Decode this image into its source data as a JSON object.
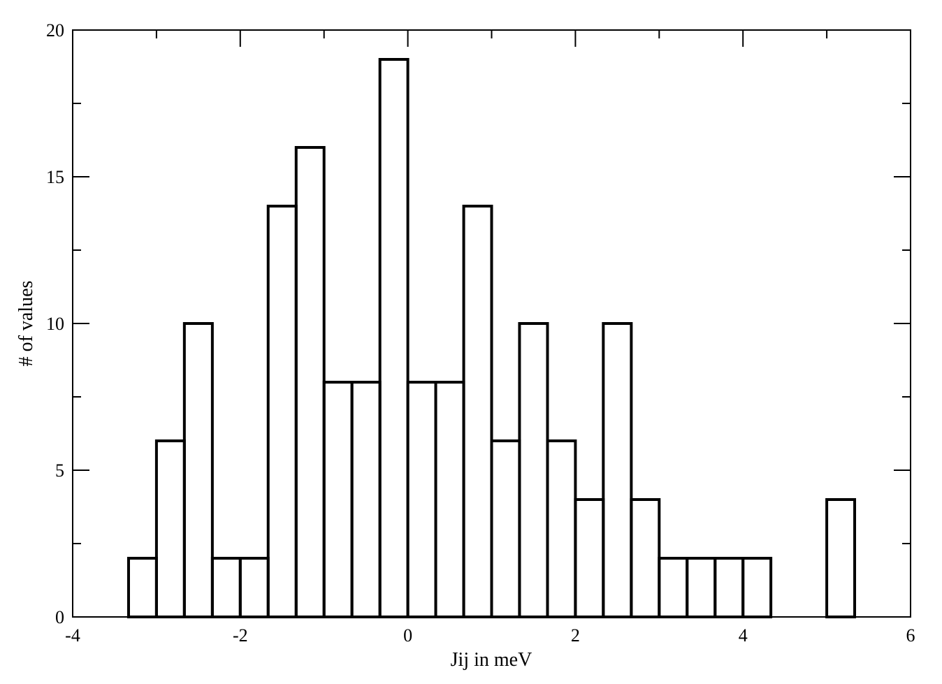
{
  "chart_data": {
    "type": "bar",
    "subtype": "histogram",
    "xlabel": "Jij in meV",
    "ylabel": "# of values",
    "xlim": [
      -4,
      6
    ],
    "ylim": [
      0,
      20
    ],
    "x_major_ticks": [
      -4,
      -2,
      0,
      2,
      4,
      6
    ],
    "x_tick_labels": [
      "-4",
      "-2",
      "0",
      "2",
      "4",
      "6"
    ],
    "x_minor_ticks": [
      -3,
      -1,
      1,
      3,
      5
    ],
    "y_major_ticks": [
      0,
      5,
      10,
      15,
      20
    ],
    "y_tick_labels": [
      "0",
      "5",
      "10",
      "15",
      "20"
    ],
    "y_minor_ticks": [
      2.5,
      7.5,
      12.5,
      17.5
    ],
    "grid": false,
    "bin_edges": [
      -4.0,
      -3.333,
      -3.0,
      -2.667,
      -2.333,
      -2.0,
      -1.667,
      -1.333,
      -1.0,
      -0.667,
      -0.333,
      0.0,
      0.333,
      0.667,
      1.0,
      1.333,
      1.667,
      2.0,
      2.333,
      2.667,
      3.0,
      3.333,
      3.667,
      4.0,
      4.333,
      5.0,
      5.333,
      6.0
    ],
    "values": [
      0,
      2,
      6,
      10,
      2,
      2,
      14,
      16,
      8,
      8,
      19,
      8,
      8,
      14,
      6,
      10,
      6,
      4,
      10,
      4,
      2,
      2,
      2,
      2,
      0,
      4,
      0
    ]
  }
}
